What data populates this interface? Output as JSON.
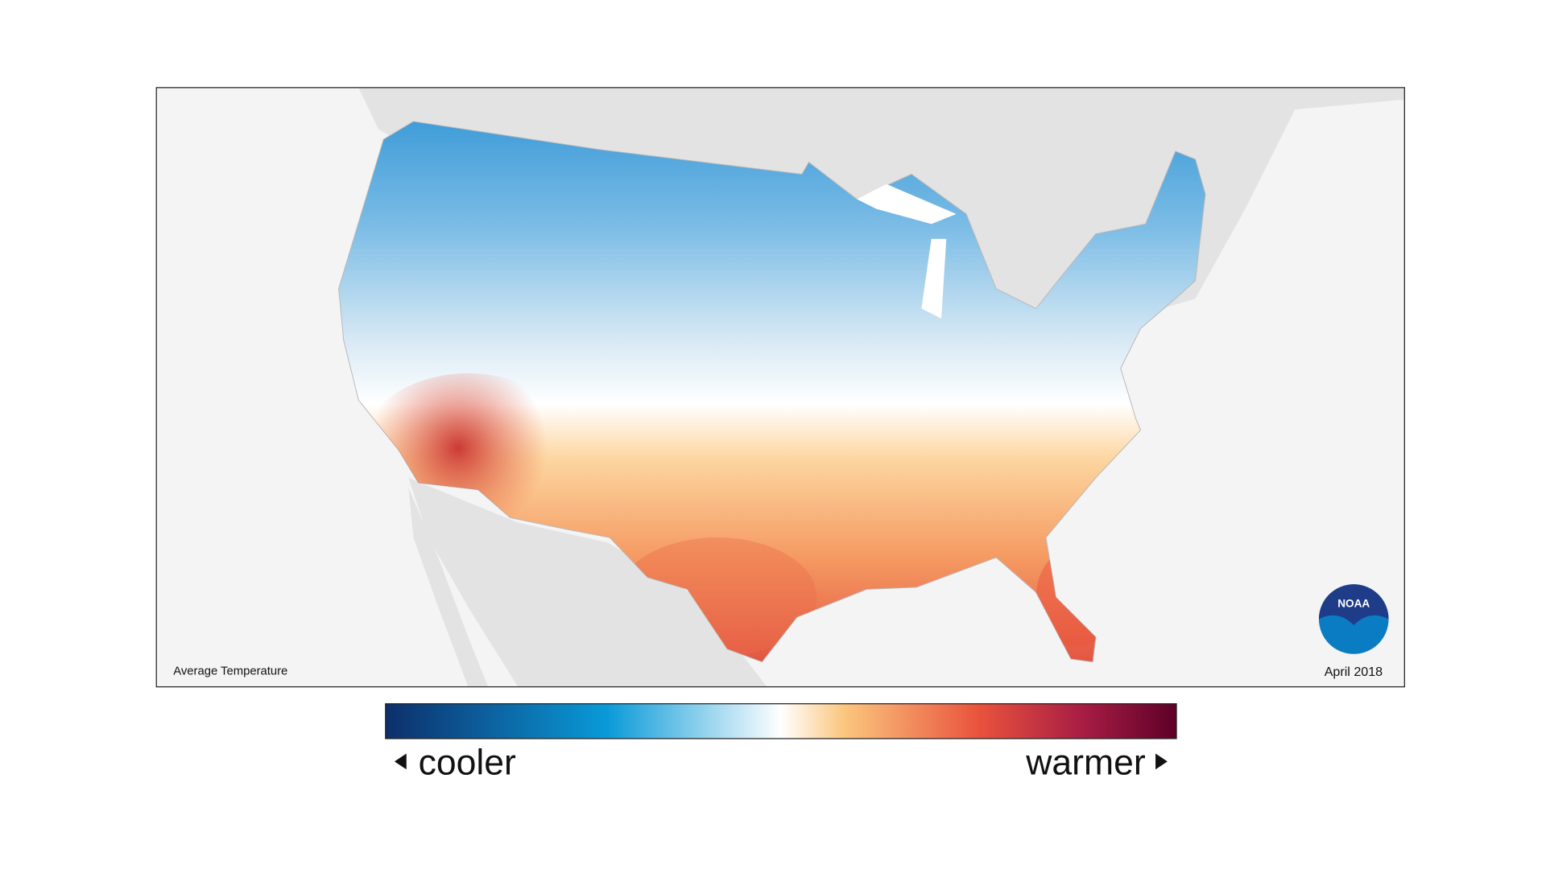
{
  "map": {
    "title": "Average Temperature",
    "date": "April 2018",
    "logo": "NOAA",
    "legend": {
      "low_label": "cooler",
      "high_label": "warmer"
    }
  }
}
